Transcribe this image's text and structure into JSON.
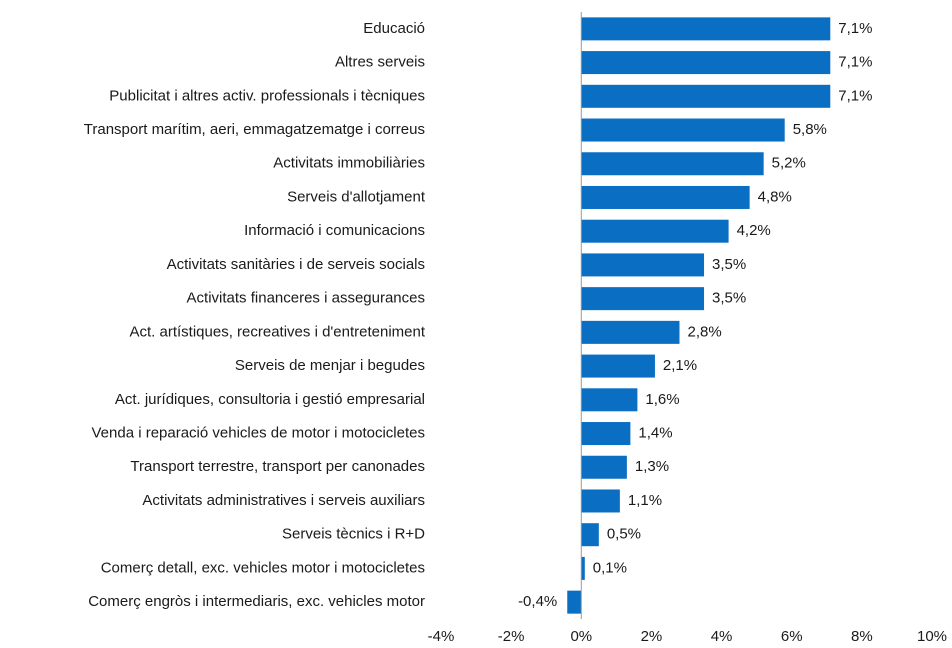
{
  "chart_data": {
    "type": "barh",
    "categories": [
      "Educació",
      "Altres serveis",
      "Publicitat i altres activ. professionals i tècniques",
      "Transport marítim, aeri, emmagatzematge i correus",
      "Activitats immobiliàries",
      "Serveis d'allotjament",
      "Informació i comunicacions",
      "Activitats sanitàries i de serveis socials",
      "Activitats financeres i assegurances",
      "Act. artístiques, recreatives i d'entreteniment",
      "Serveis de menjar i begudes",
      "Act. jurídiques, consultoria i gestió empresarial",
      "Venda i reparació vehicles de motor i motocicletes",
      "Transport terrestre, transport per canonades",
      "Activitats administratives i serveis auxiliars",
      "Serveis tècnics i R+D",
      "Comerç detall, exc. vehicles motor i motocicletes",
      "Comerç engròs i intermediaris, exc. vehicles motor"
    ],
    "values": [
      7.1,
      7.1,
      7.1,
      5.8,
      5.2,
      4.8,
      4.2,
      3.5,
      3.5,
      2.8,
      2.1,
      1.6,
      1.4,
      1.3,
      1.1,
      0.5,
      0.1,
      -0.4
    ],
    "value_labels": [
      "7,1%",
      "7,1%",
      "7,1%",
      "5,8%",
      "5,2%",
      "4,8%",
      "4,2%",
      "3,5%",
      "3,5%",
      "2,8%",
      "2,1%",
      "1,6%",
      "1,4%",
      "1,3%",
      "1,1%",
      "0,5%",
      "0,1%",
      "-0,4%"
    ],
    "color": "#0a6fc2",
    "xlim": [
      -4,
      10
    ],
    "xticks": [
      {
        "value": -4,
        "label": "-4%"
      },
      {
        "value": -2,
        "label": "-2%"
      },
      {
        "value": 0,
        "label": "0%"
      },
      {
        "value": 2,
        "label": "2%"
      },
      {
        "value": 4,
        "label": "4%"
      },
      {
        "value": 6,
        "label": "6%"
      },
      {
        "value": 8,
        "label": "8%"
      },
      {
        "value": 10,
        "label": "10%"
      }
    ]
  }
}
